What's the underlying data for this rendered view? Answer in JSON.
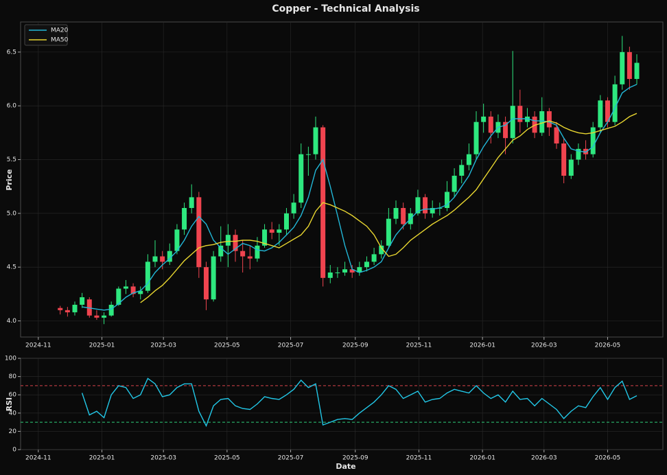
{
  "chart_data": {
    "type": "candlestick",
    "title": "Copper - Technical Analysis",
    "ylabel": "Price",
    "xlabel": "Date",
    "legend": "upper left",
    "grid": true,
    "up_color": "#2ee87f",
    "down_color": "#f0444f",
    "x": [
      "2024-11-22",
      "2024-11-29",
      "2024-12-06",
      "2024-12-13",
      "2024-12-20",
      "2024-12-27",
      "2025-01-03",
      "2025-01-10",
      "2025-01-17",
      "2025-01-24",
      "2025-01-31",
      "2025-02-07",
      "2025-02-14",
      "2025-02-21",
      "2025-02-28",
      "2025-03-07",
      "2025-03-14",
      "2025-03-21",
      "2025-03-28",
      "2025-04-04",
      "2025-04-11",
      "2025-04-18",
      "2025-04-25",
      "2025-05-02",
      "2025-05-09",
      "2025-05-16",
      "2025-05-23",
      "2025-05-30",
      "2025-06-06",
      "2025-06-13",
      "2025-06-20",
      "2025-06-27",
      "2025-07-04",
      "2025-07-11",
      "2025-07-18",
      "2025-07-25",
      "2025-08-01",
      "2025-08-08",
      "2025-08-15",
      "2025-08-22",
      "2025-08-29",
      "2025-09-05",
      "2025-09-12",
      "2025-09-19",
      "2025-09-26",
      "2025-10-03",
      "2025-10-10",
      "2025-10-17",
      "2025-10-24",
      "2025-10-31",
      "2025-11-07",
      "2025-11-14",
      "2025-11-21",
      "2025-11-28",
      "2025-12-05",
      "2025-12-12",
      "2025-12-19",
      "2025-12-26",
      "2026-01-02",
      "2026-01-09",
      "2026-01-16",
      "2026-01-23",
      "2026-01-30",
      "2026-02-06",
      "2026-02-13",
      "2026-02-20",
      "2026-02-27",
      "2026-03-06",
      "2026-03-13",
      "2026-03-20",
      "2026-03-27",
      "2026-04-03",
      "2026-04-10",
      "2026-04-17",
      "2026-04-24",
      "2026-05-01",
      "2026-05-08",
      "2026-05-15",
      "2026-05-22",
      "2026-05-29"
    ],
    "open": [
      4.12,
      4.1,
      4.08,
      4.15,
      4.2,
      4.05,
      4.03,
      4.05,
      4.15,
      4.3,
      4.32,
      4.25,
      4.28,
      4.55,
      4.6,
      4.55,
      4.65,
      4.85,
      5.05,
      5.15,
      4.5,
      4.2,
      4.6,
      4.7,
      4.8,
      4.65,
      4.6,
      4.58,
      4.7,
      4.85,
      4.82,
      4.85,
      5.0,
      5.1,
      5.55,
      5.55,
      5.8,
      4.4,
      4.45,
      4.45,
      4.48,
      4.45,
      4.5,
      4.55,
      4.62,
      4.7,
      4.95,
      5.05,
      4.9,
      5.0,
      5.15,
      5.0,
      5.05,
      5.05,
      5.2,
      5.35,
      5.45,
      5.55,
      5.85,
      5.9,
      5.75,
      5.85,
      5.7,
      6.0,
      5.85,
      5.9,
      5.75,
      5.95,
      5.8,
      5.65,
      5.35,
      5.5,
      5.6,
      5.55,
      5.8,
      6.05,
      5.85,
      6.2,
      6.5,
      6.25
    ],
    "high": [
      4.14,
      4.13,
      4.18,
      4.26,
      4.22,
      4.1,
      4.08,
      4.18,
      4.32,
      4.38,
      4.35,
      4.32,
      4.62,
      4.75,
      4.65,
      4.72,
      4.9,
      5.1,
      5.27,
      5.2,
      4.55,
      4.65,
      4.88,
      4.9,
      4.85,
      4.75,
      4.7,
      4.78,
      4.9,
      4.92,
      4.9,
      5.05,
      5.18,
      5.65,
      5.62,
      5.9,
      5.82,
      4.52,
      4.5,
      4.55,
      4.52,
      4.55,
      4.6,
      4.68,
      4.75,
      5.05,
      5.12,
      5.1,
      5.05,
      5.22,
      5.18,
      5.12,
      5.1,
      5.3,
      5.42,
      5.5,
      5.65,
      5.95,
      6.02,
      5.95,
      5.92,
      5.9,
      6.51,
      6.15,
      5.98,
      5.95,
      6.08,
      5.98,
      5.85,
      5.7,
      5.55,
      5.65,
      5.68,
      5.85,
      6.1,
      6.08,
      6.28,
      6.65,
      6.55,
      6.48
    ],
    "low": [
      4.06,
      4.04,
      4.05,
      4.12,
      4.03,
      4.01,
      3.97,
      4.04,
      4.14,
      4.25,
      4.22,
      4.2,
      4.26,
      4.5,
      4.48,
      4.52,
      4.62,
      4.8,
      5.0,
      4.4,
      4.1,
      4.18,
      4.55,
      4.5,
      4.55,
      4.45,
      4.48,
      4.55,
      4.68,
      4.76,
      4.7,
      4.8,
      4.95,
      5.05,
      5.35,
      5.5,
      4.32,
      4.35,
      4.4,
      4.42,
      4.4,
      4.42,
      4.46,
      4.52,
      4.58,
      4.68,
      4.9,
      4.85,
      4.85,
      4.98,
      4.95,
      4.96,
      4.98,
      5.02,
      5.15,
      5.28,
      5.4,
      5.5,
      5.75,
      5.65,
      5.7,
      5.55,
      5.65,
      5.75,
      5.8,
      5.7,
      5.72,
      5.72,
      5.6,
      5.28,
      5.32,
      5.45,
      5.5,
      5.52,
      5.75,
      5.8,
      5.82,
      6.15,
      6.15,
      6.2
    ],
    "close": [
      4.1,
      4.08,
      4.15,
      4.22,
      4.05,
      4.03,
      4.05,
      4.15,
      4.3,
      4.32,
      4.25,
      4.28,
      4.55,
      4.6,
      4.55,
      4.65,
      4.85,
      5.05,
      5.15,
      4.5,
      4.2,
      4.6,
      4.7,
      4.8,
      4.65,
      4.6,
      4.58,
      4.7,
      4.85,
      4.82,
      4.85,
      5.0,
      5.1,
      5.55,
      5.55,
      5.8,
      4.4,
      4.45,
      4.45,
      4.48,
      4.45,
      4.5,
      4.55,
      4.62,
      4.7,
      4.95,
      5.05,
      4.9,
      5.0,
      5.15,
      5.0,
      5.05,
      5.05,
      5.2,
      5.35,
      5.45,
      5.55,
      5.85,
      5.9,
      5.75,
      5.85,
      5.7,
      6.0,
      5.85,
      5.9,
      5.75,
      5.95,
      5.8,
      5.65,
      5.35,
      5.5,
      5.6,
      5.55,
      5.8,
      6.05,
      5.85,
      6.2,
      6.5,
      6.25,
      6.4
    ],
    "series": [
      {
        "name": "MA20",
        "color": "#22b8d8",
        "values": [
          null,
          null,
          null,
          4.13,
          4.12,
          4.11,
          4.1,
          4.11,
          4.16,
          4.22,
          4.26,
          4.28,
          4.35,
          4.45,
          4.52,
          4.58,
          4.65,
          4.75,
          4.88,
          4.97,
          4.9,
          4.75,
          4.68,
          4.62,
          4.67,
          4.72,
          4.7,
          4.66,
          4.65,
          4.68,
          4.73,
          4.8,
          4.87,
          4.98,
          5.15,
          5.4,
          5.5,
          5.25,
          4.98,
          4.7,
          4.48,
          4.45,
          4.47,
          4.5,
          4.55,
          4.68,
          4.8,
          4.88,
          4.95,
          5.02,
          5.04,
          5.04,
          5.05,
          5.08,
          5.15,
          5.25,
          5.35,
          5.5,
          5.62,
          5.72,
          5.8,
          5.82,
          5.88,
          5.88,
          5.88,
          5.86,
          5.86,
          5.85,
          5.82,
          5.7,
          5.6,
          5.58,
          5.57,
          5.62,
          5.75,
          5.85,
          5.98,
          6.12,
          6.17,
          6.2
        ]
      },
      {
        "name": "MA50",
        "color": "#e8d630",
        "values": [
          null,
          null,
          null,
          null,
          null,
          null,
          null,
          null,
          null,
          null,
          null,
          4.17,
          4.22,
          4.28,
          4.33,
          4.4,
          4.48,
          4.56,
          4.62,
          4.68,
          4.7,
          4.71,
          4.73,
          4.74,
          4.74,
          4.75,
          4.75,
          4.74,
          4.72,
          4.7,
          4.68,
          4.72,
          4.76,
          4.8,
          4.88,
          5.02,
          5.1,
          5.08,
          5.05,
          5.02,
          4.98,
          4.93,
          4.88,
          4.8,
          4.68,
          4.6,
          4.62,
          4.68,
          4.75,
          4.8,
          4.85,
          4.9,
          4.94,
          4.98,
          5.03,
          5.09,
          5.15,
          5.22,
          5.32,
          5.42,
          5.52,
          5.6,
          5.68,
          5.72,
          5.78,
          5.82,
          5.84,
          5.86,
          5.84,
          5.8,
          5.77,
          5.75,
          5.74,
          5.75,
          5.77,
          5.79,
          5.81,
          5.85,
          5.9,
          5.93
        ]
      }
    ],
    "xlim": [
      "2024-10-15",
      "2026-06-23"
    ],
    "xticks": [
      "2024-11",
      "2025-01",
      "2025-03",
      "2025-05",
      "2025-07",
      "2025-09",
      "2025-11",
      "2026-01",
      "2026-03",
      "2026-05"
    ],
    "ylim": [
      3.85,
      6.78
    ],
    "yticks": [
      {
        "value": 4,
        "label": "4.0"
      },
      4.5,
      {
        "value": 5,
        "label": "5.0"
      },
      5.5,
      {
        "value": 6,
        "label": "6.0"
      },
      6.5
    ],
    "rsi": {
      "ylabel": "RSI",
      "color": "#22c8e8",
      "ylim": [
        0,
        100
      ],
      "yticks": [
        0,
        20,
        40,
        60,
        80,
        100
      ],
      "levels": [
        {
          "value": 70,
          "color": "#d9454a"
        },
        {
          "value": 30,
          "color": "#2ecf7a"
        }
      ],
      "values": [
        null,
        null,
        null,
        62,
        38,
        42,
        35,
        60,
        70,
        68,
        56,
        60,
        78,
        72,
        58,
        60,
        68,
        72,
        72,
        42,
        26,
        48,
        55,
        56,
        48,
        45,
        44,
        50,
        58,
        56,
        55,
        60,
        66,
        76,
        68,
        72,
        27,
        30,
        33,
        34,
        33,
        40,
        46,
        52,
        60,
        70,
        66,
        56,
        60,
        64,
        52,
        55,
        56,
        62,
        66,
        64,
        62,
        70,
        62,
        56,
        60,
        52,
        64,
        55,
        56,
        48,
        56,
        50,
        44,
        34,
        42,
        48,
        46,
        58,
        68,
        55,
        68,
        75,
        55,
        59
      ]
    }
  }
}
